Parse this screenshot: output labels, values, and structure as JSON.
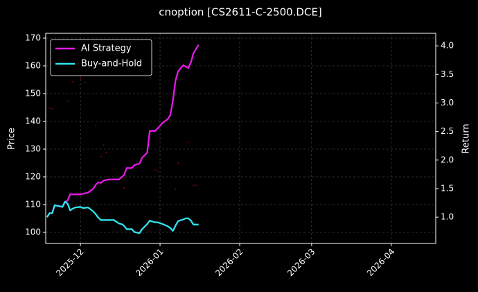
{
  "chart_data": {
    "type": "line",
    "title": "cnoption [CS2611-C-2500.DCE]",
    "ylabel": "Price",
    "y2label": "Return",
    "x": [
      -13,
      -12,
      -11,
      -10,
      -8,
      -7,
      -6,
      -5,
      -4,
      -3,
      -2,
      0,
      1,
      3,
      5,
      6,
      7,
      8,
      9,
      11,
      13,
      15,
      16,
      17,
      18,
      20,
      21,
      23,
      24,
      26,
      27,
      29,
      30,
      32,
      34,
      35,
      36,
      37,
      38,
      40,
      41,
      42,
      43,
      44,
      46
    ],
    "xlim": [
      -13.5,
      138.3
    ],
    "xticks": [
      {
        "value": 0,
        "label": "2025-12"
      },
      {
        "value": 31,
        "label": "2026-01"
      },
      {
        "value": 62,
        "label": "2026-02"
      },
      {
        "value": 90,
        "label": "2026-03"
      },
      {
        "value": 121,
        "label": "2026-04"
      }
    ],
    "ylim": [
      96,
      171.75
    ],
    "yticks": [
      100,
      110,
      120,
      130,
      140,
      150,
      160,
      170
    ],
    "y2lim": [
      0.54,
      4.22
    ],
    "y2ticks": [
      {
        "value": 1,
        "label": "1.0"
      },
      {
        "value": 1.5,
        "label": "1.5"
      },
      {
        "value": 2,
        "label": "2.0"
      },
      {
        "value": 2.5,
        "label": "2.5"
      },
      {
        "value": 3,
        "label": "3.0"
      },
      {
        "value": 3.5,
        "label": "3.5"
      },
      {
        "value": 4,
        "label": "4.0"
      }
    ],
    "grid": true,
    "legend": "upper left",
    "series": [
      {
        "name": "AI Strategy",
        "color": "#e619e6",
        "axis": "y2",
        "values": [
          1.0,
          1.07,
          1.07,
          1.21,
          1.19,
          1.18,
          1.27,
          1.29,
          1.4,
          1.4,
          1.4,
          1.4,
          1.41,
          1.43,
          1.5,
          1.57,
          1.61,
          1.6,
          1.64,
          1.66,
          1.66,
          1.66,
          1.7,
          1.74,
          1.86,
          1.86,
          1.91,
          1.94,
          2.04,
          2.13,
          2.51,
          2.51,
          2.55,
          2.65,
          2.72,
          2.79,
          3.04,
          3.39,
          3.55,
          3.66,
          3.64,
          3.61,
          3.71,
          3.87,
          4.02
        ]
      },
      {
        "name": "Buy-and-Hold",
        "color": "#2ee6f0",
        "axis": "y2",
        "values": [
          1.0,
          1.07,
          1.07,
          1.21,
          1.19,
          1.18,
          1.27,
          1.24,
          1.12,
          1.15,
          1.17,
          1.18,
          1.16,
          1.17,
          1.1,
          1.05,
          0.99,
          0.95,
          0.95,
          0.95,
          0.95,
          0.89,
          0.88,
          0.85,
          0.79,
          0.79,
          0.74,
          0.72,
          0.79,
          0.88,
          0.94,
          0.91,
          0.91,
          0.88,
          0.84,
          0.81,
          0.76,
          0.85,
          0.93,
          0.96,
          0.98,
          0.98,
          0.94,
          0.87,
          0.87
        ]
      },
      {
        "type": "scatter",
        "color": "#8b0000",
        "x": [
          -12,
          -11,
          -5,
          -3,
          0,
          2,
          6,
          8,
          9,
          10,
          17,
          29,
          30,
          37,
          38,
          42,
          44,
          45
        ],
        "values": [
          144.8,
          144.5,
          147.3,
          154.3,
          155.5,
          154.0,
          138.5,
          127.3,
          131.5,
          128.8,
          116.0,
          122.5,
          122.0,
          115.5,
          125.0,
          132.5,
          117.0,
          117.0
        ]
      }
    ]
  }
}
